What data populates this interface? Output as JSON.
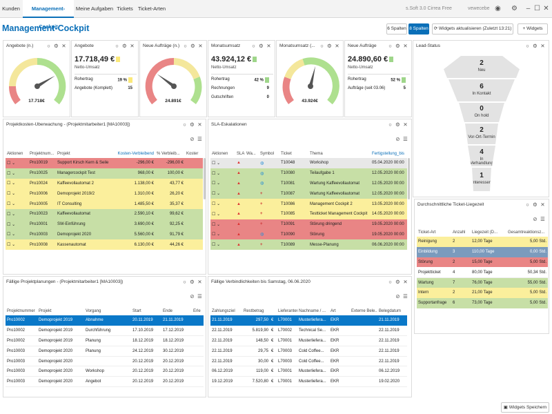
{
  "topbar": {
    "tabs": [
      "Kunden",
      "Management-Cockpit",
      "Meine Aufgaben",
      "Tickets",
      "Ticket-Arten"
    ],
    "right_text": "s.Soft 3.0 Cirrea Free",
    "right_text2": "vewecebe"
  },
  "page": {
    "title": "Management-Cockpit"
  },
  "toolbar": {
    "btn_6": "6 Spalten",
    "btn_8": "8 Spalten",
    "btn_refresh": "Widgets aktualisieren (Zuletzt 13:21)",
    "btn_add": "Widgets",
    "btn_save": "Widgets Speichern"
  },
  "kpi": {
    "angebote_gauge": {
      "title": "Angebote (n.)",
      "value": "17.718€",
      "level": 0.72
    },
    "angebote": {
      "title": "Angebote",
      "value": "17.718,49 €",
      "sub": "Netto-Umsatz",
      "r1_label": "Rohertrag",
      "r1_value": "19 %",
      "r2_label": "Angebote (Komplett)",
      "r2_value": "15",
      "color": "#fbe97a"
    },
    "auftraege_gauge": {
      "title": "Neue Aufträge (n.)",
      "value": "24.891€",
      "level": 0.3
    },
    "umsatz": {
      "title": "Monatsumsatz",
      "value": "43.924,12 €",
      "sub": "Netto-Umsatz",
      "r1_label": "Rohertrag",
      "r1_value": "42 %",
      "r2_label": "Rechnungen",
      "r2_value": "9",
      "r3_label": "Gutschriften",
      "r3_value": "0",
      "color": "#9fd68a"
    },
    "umsatz_gauge": {
      "title": "Monatsumsatz (...",
      "value": "43.924€",
      "level": 0.55
    },
    "auftraege": {
      "title": "Neue Aufträge",
      "value": "24.890,60 €",
      "sub": "Netto-Umsatz",
      "r1_label": "Rohertrag",
      "r1_value": "52 %",
      "r2_label": "Aufträge (seit 03.06)",
      "r2_value": "5",
      "color": "#9fd68a"
    }
  },
  "lead": {
    "title": "Lead-Status",
    "stages": [
      {
        "value": "2",
        "label": "Neu"
      },
      {
        "value": "6",
        "label": "In Kontakt"
      },
      {
        "value": "0",
        "label": "On hold"
      },
      {
        "value": "2",
        "label": "Vor-Ort-Termin"
      },
      {
        "value": "4",
        "label": "In Verhandlung"
      },
      {
        "value": "1",
        "label": "Interessent"
      }
    ]
  },
  "projekt": {
    "title": "Projektkosten-Überwachung - (Projektmitarbeiter1 [MA10003])",
    "headers": [
      "Aktionen",
      "Projektnum...",
      "Projekt",
      "Kosten-Verbleibend",
      "% Verbleib...",
      "Koster"
    ],
    "rows": [
      {
        "color": "red",
        "nr": "Pro10019",
        "name": "Support Kirsch Kern & Seile",
        "kosten": "-296,00",
        "pct": "-296,00",
        "k": "€"
      },
      {
        "color": "green",
        "nr": "Pro10025",
        "name": "Managercockpit Test",
        "kosten": "968,00",
        "pct": "100,00",
        "k": "€"
      },
      {
        "color": "yellow",
        "nr": "Pro10024",
        "name": "Kaffeevollautomat 2",
        "kosten": "1.138,00",
        "pct": "43,77",
        "k": "€"
      },
      {
        "color": "yellow",
        "nr": "Pro10006",
        "name": "Demoprojekt 2019/2",
        "kosten": "1.310,00",
        "pct": "26,20",
        "k": "€"
      },
      {
        "color": "yellow",
        "nr": "Pro10005",
        "name": "IT Consulting",
        "kosten": "1.485,50",
        "pct": "35,37",
        "k": "€"
      },
      {
        "color": "green",
        "nr": "Pro10023",
        "name": "Kaffeevollautomat",
        "kosten": "2.590,10",
        "pct": "99,62",
        "k": "€"
      },
      {
        "color": "green",
        "nr": "Pro10001",
        "name": "SW-Einführung",
        "kosten": "3.690,00",
        "pct": "92,25",
        "k": "€"
      },
      {
        "color": "green",
        "nr": "Pro10003",
        "name": "Demoprojekt 2020",
        "kosten": "5.560,00",
        "pct": "91,79",
        "k": "€"
      },
      {
        "color": "yellow",
        "nr": "Pro10008",
        "name": "Kassenautomat",
        "kosten": "6.130,00",
        "pct": "44,26",
        "k": "€"
      }
    ]
  },
  "sla": {
    "title": "SLA-Eskalationen",
    "headers": [
      "Aktionen",
      "SLA",
      "Wa...",
      "Symbol",
      "Ticket",
      "Thema",
      "Fertigstellung_bis"
    ],
    "rows": [
      {
        "color": "grey",
        "sym": "globe",
        "ticket": "T10048",
        "thema": "Workshop",
        "date": "05.04.2020 00:00"
      },
      {
        "color": "green",
        "sym": "globe",
        "ticket": "T10080",
        "thema": "Teilaufgabe 1",
        "date": "12.05.2020 00:00"
      },
      {
        "color": "green",
        "sym": "globe",
        "ticket": "T10081",
        "thema": "Wartung Kaffeevollautomat",
        "date": "12.05.2020 00:00"
      },
      {
        "color": "green",
        "sym": "plus",
        "ticket": "T10087",
        "thema": "Wartung Kaffeevollautomat",
        "date": "12.05.2020 00:00"
      },
      {
        "color": "yellow",
        "sym": "plus",
        "ticket": "T10086",
        "thema": "Management Cockpit 2",
        "date": "13.05.2020 00:00"
      },
      {
        "color": "yellow",
        "sym": "plus",
        "ticket": "T10085",
        "thema": "Testticket Management Cockpit",
        "date": "14.05.2020 00:00"
      },
      {
        "color": "red",
        "sym": "plus",
        "ticket": "T10091",
        "thema": "Störung dringend",
        "date": "19.05.2020 00:00"
      },
      {
        "color": "red",
        "sym": "globe",
        "ticket": "T10090",
        "thema": "Störung",
        "date": "19.05.2020 00:00"
      },
      {
        "color": "green",
        "sym": "plus",
        "ticket": "T10089",
        "thema": "Messe-Planung",
        "date": "06.06.2020 00:00"
      }
    ]
  },
  "liegezeit": {
    "title": "Durchschnittliche Ticket-Liegezeit",
    "headers": [
      "Ticket-Art",
      "Anzahl",
      "Liegezeit (D...",
      "Gesamtreaktionsz..."
    ],
    "rows": [
      {
        "color": "yellow",
        "art": "Reinigung",
        "anzahl": "2",
        "liege": "12,00",
        "unit": "Tage",
        "ges": "5,00",
        "gunit": "Std."
      },
      {
        "color": "blue",
        "art": "Einbildung",
        "anzahl": "3",
        "liege": "110,00",
        "unit": "Tage",
        "ges": "0,00",
        "gunit": "Std."
      },
      {
        "color": "red",
        "art": "Störung",
        "anzahl": "2",
        "liege": "15,00",
        "unit": "Tage",
        "ges": "5,00",
        "gunit": "Std."
      },
      {
        "color": "white",
        "art": "Projektticket",
        "anzahl": "4",
        "liege": "80,00",
        "unit": "Tage",
        "ges": "50,34",
        "gunit": "Std."
      },
      {
        "color": "green",
        "art": "Wartung",
        "anzahl": "7",
        "liege": "76,00",
        "unit": "Tage",
        "ges": "55,00",
        "gunit": "Std."
      },
      {
        "color": "yellow",
        "art": "Intern",
        "anzahl": "2",
        "liege": "21,00",
        "unit": "Tage",
        "ges": "5,00",
        "gunit": "Std."
      },
      {
        "color": "green",
        "art": "Supportanfrage",
        "anzahl": "6",
        "liege": "73,00",
        "unit": "Tage",
        "ges": "5,00",
        "gunit": "Std."
      }
    ]
  },
  "planung": {
    "title": "Fällige Projektplanungen - (Projektmitarbeiter1 [MA10003])",
    "headers": [
      "Projektnummer",
      "Projekt",
      "Vorgang",
      "Start",
      "Ende",
      "Erle"
    ],
    "rows": [
      {
        "color": "sel",
        "nr": "Pro10002",
        "proj": "Demoprojekt 2019",
        "vorgang": "Abnahme",
        "start": "20.11.2019",
        "ende": "21.11.2019"
      },
      {
        "color": "white",
        "nr": "Pro10002",
        "proj": "Demoprojekt 2019",
        "vorgang": "Durchführung",
        "start": "17.10.2019",
        "ende": "17.12.2019"
      },
      {
        "color": "white",
        "nr": "Pro10002",
        "proj": "Demoprojekt 2019",
        "vorgang": "Planung",
        "start": "18.12.2019",
        "ende": "18.12.2019"
      },
      {
        "color": "white",
        "nr": "Pro10003",
        "proj": "Demoprojekt 2020",
        "vorgang": "Planung",
        "start": "24.12.2019",
        "ende": "30.12.2019"
      },
      {
        "color": "white",
        "nr": "Pro10003",
        "proj": "Demoprojekt 2020",
        "vorgang": "",
        "start": "20.12.2019",
        "ende": "20.12.2019"
      },
      {
        "color": "white",
        "nr": "Pro10003",
        "proj": "Demoprojekt 2020",
        "vorgang": "Workshop",
        "start": "20.12.2019",
        "ende": "20.12.2019"
      },
      {
        "color": "white",
        "nr": "Pro10003",
        "proj": "Demoprojekt 2020",
        "vorgang": "Angebot",
        "start": "20.12.2019",
        "ende": "20.12.2019"
      }
    ]
  },
  "verbind": {
    "title": "Fällige Verbindlichkeiten bis Samstag, 06.06.2020",
    "headers": [
      "Zahlungsziel",
      "Restbetrag",
      "Lieferantenn...",
      "Nachname / ...",
      "Art",
      "Externe Bele...",
      "Belegdatum"
    ],
    "rows": [
      {
        "color": "sel",
        "ziel": "21.11.2019",
        "rest": "297,50",
        "cur": "€",
        "lief": "L70001",
        "name": "Musterliefera...",
        "art": "EKR",
        "datum": "21.11.2019"
      },
      {
        "color": "white",
        "ziel": "22.11.2019",
        "rest": "5.819,90",
        "cur": "€",
        "lief": "L70002",
        "name": "Technical Se...",
        "art": "EKR",
        "datum": "22.11.2019"
      },
      {
        "color": "white",
        "ziel": "22.11.2019",
        "rest": "148,50",
        "cur": "€",
        "lief": "L70001",
        "name": "Musterliefera...",
        "art": "EKR",
        "datum": "22.11.2019"
      },
      {
        "color": "white",
        "ziel": "22.11.2019",
        "rest": "29,75",
        "cur": "€",
        "lief": "L70003",
        "name": "Cold Coffee...",
        "art": "EKR",
        "datum": "22.11.2019"
      },
      {
        "color": "white",
        "ziel": "22.11.2019",
        "rest": "30,00",
        "cur": "€",
        "lief": "L70003",
        "name": "Cold Coffee...",
        "art": "EKR",
        "datum": "22.11.2019"
      },
      {
        "color": "white",
        "ziel": "06.12.2019",
        "rest": "119,00",
        "cur": "€",
        "lief": "L70001",
        "name": "Musterliefera...",
        "art": "EKR",
        "datum": "06.12.2019"
      },
      {
        "color": "white",
        "ziel": "19.12.2019",
        "rest": "7.520,80",
        "cur": "€",
        "lief": "L70001",
        "name": "Musterliefera...",
        "art": "EKR",
        "datum": "19.02.2020"
      }
    ]
  }
}
